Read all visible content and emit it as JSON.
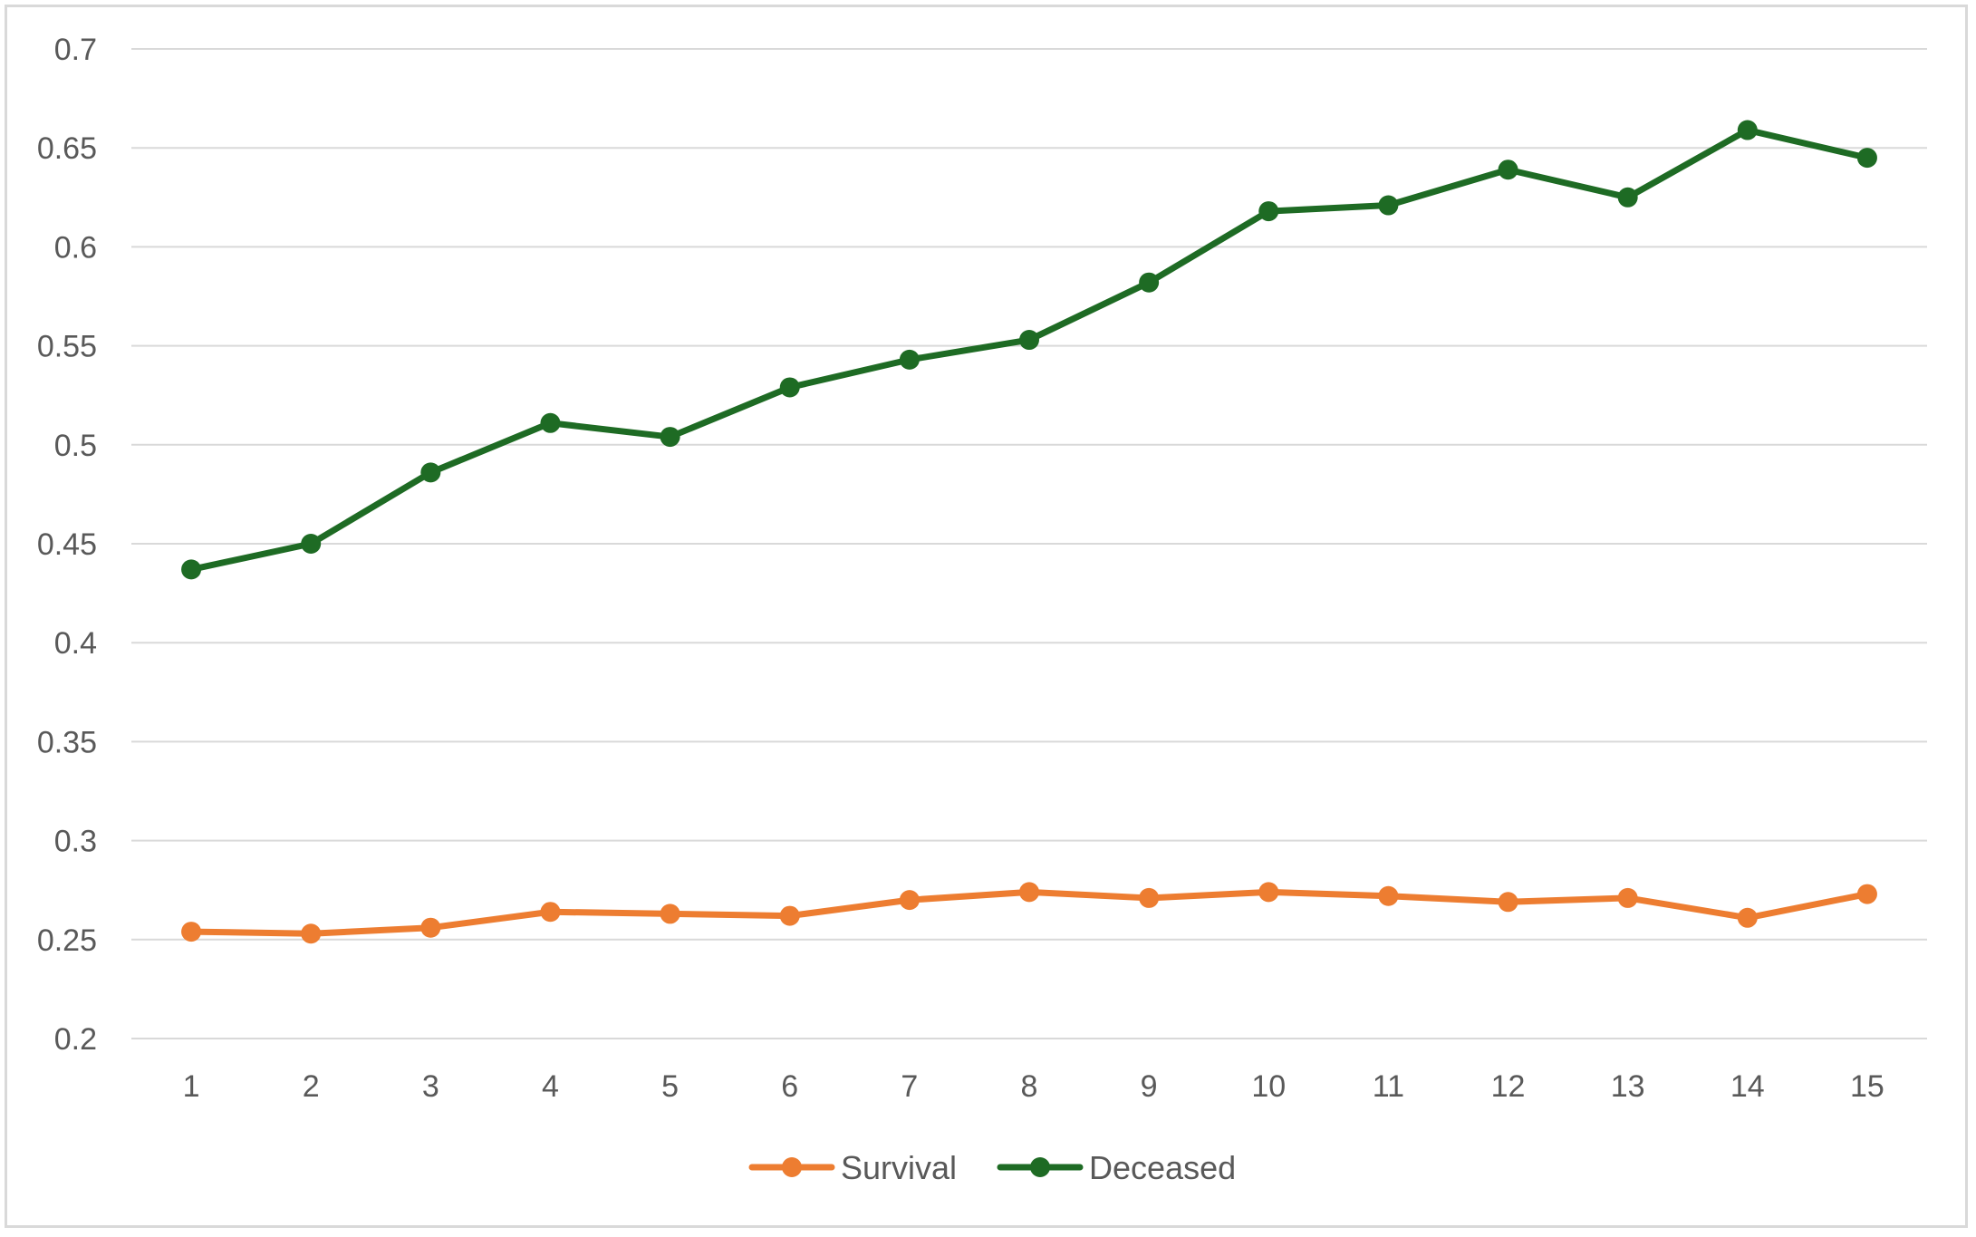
{
  "chart_data": {
    "type": "line",
    "title": "",
    "xlabel": "",
    "ylabel": "",
    "categories": [
      "1",
      "2",
      "3",
      "4",
      "5",
      "6",
      "7",
      "8",
      "9",
      "10",
      "11",
      "12",
      "13",
      "14",
      "15"
    ],
    "ylim": [
      0.2,
      0.7
    ],
    "y_ticks": [
      "0.2",
      "0.25",
      "0.3",
      "0.35",
      "0.4",
      "0.45",
      "0.5",
      "0.55",
      "0.6",
      "0.65",
      "0.7"
    ],
    "grid": true,
    "legend_position": "bottom",
    "series": [
      {
        "name": "Survival",
        "color": "#ed7d31",
        "values": [
          0.254,
          0.253,
          0.256,
          0.264,
          0.263,
          0.262,
          0.27,
          0.274,
          0.271,
          0.274,
          0.272,
          0.269,
          0.271,
          0.261,
          0.273
        ]
      },
      {
        "name": "Deceased",
        "color": "#1e6b24",
        "values": [
          0.437,
          0.45,
          0.486,
          0.511,
          0.504,
          0.529,
          0.543,
          0.553,
          0.582,
          0.618,
          0.621,
          0.639,
          0.625,
          0.659,
          0.645
        ]
      }
    ]
  }
}
